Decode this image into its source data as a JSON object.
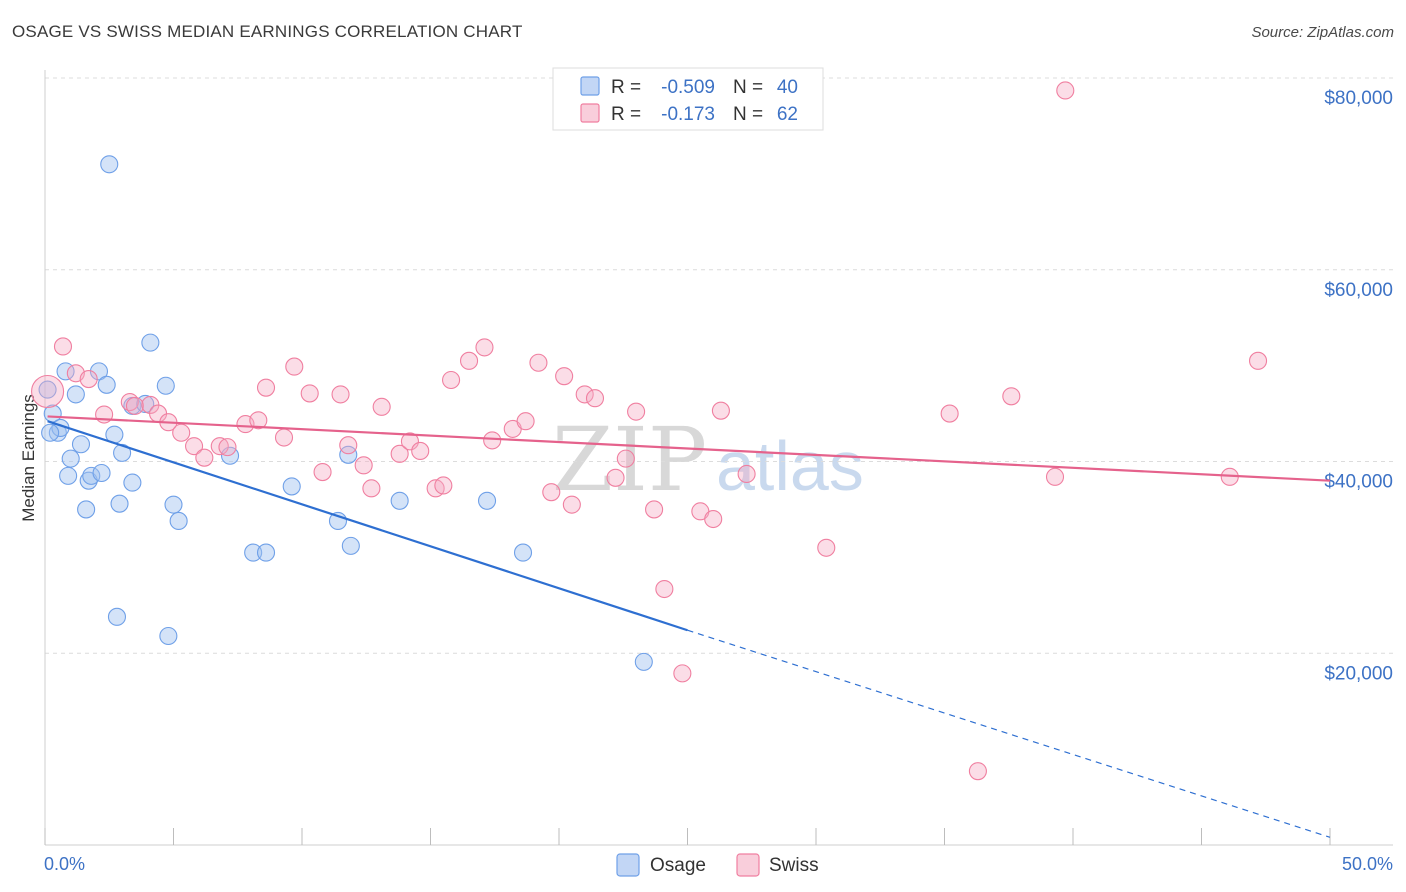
{
  "title": "OSAGE VS SWISS MEDIAN EARNINGS CORRELATION CHART",
  "source": "Source: ZipAtlas.com",
  "watermark": {
    "zip": "ZIP",
    "atlas": "atlas"
  },
  "legend": {
    "rows": [
      {
        "r_label": "R =",
        "r_value": "-0.509",
        "n_label": "N =",
        "n_value": "40",
        "color": "#6fa0e8"
      },
      {
        "r_label": "R =",
        "r_value": "-0.173",
        "n_label": "N =",
        "n_value": "62",
        "color": "#f07fa0"
      }
    ]
  },
  "bottom_legend": [
    "Osage",
    "Swiss"
  ],
  "chart_data": {
    "type": "scatter",
    "title": "OSAGE VS SWISS MEDIAN EARNINGS CORRELATION CHART",
    "xlabel": "",
    "ylabel": "Median Earnings",
    "xlim": [
      0,
      50
    ],
    "ylim": [
      0,
      80000
    ],
    "x_tick_labels": [
      "0.0%",
      "50.0%"
    ],
    "y_ticks": [
      20000,
      40000,
      60000,
      80000
    ],
    "y_tick_labels": [
      "$20,000",
      "$40,000",
      "$60,000",
      "$80,000"
    ],
    "grid": true,
    "legend_position": "top-center",
    "series": [
      {
        "name": "Osage",
        "color": "#6fa0e8",
        "trend": {
          "x0": 0.1,
          "y0": 44200,
          "x1": 25.0,
          "y1": 22400,
          "dash_to_x": 50.0,
          "dash_to_y": 800
        },
        "points": [
          [
            0.1,
            47500
          ],
          [
            0.3,
            45000
          ],
          [
            0.5,
            43000
          ],
          [
            0.6,
            43500
          ],
          [
            0.8,
            49400
          ],
          [
            0.9,
            38500
          ],
          [
            1.0,
            40300
          ],
          [
            1.2,
            47000
          ],
          [
            1.4,
            41800
          ],
          [
            1.6,
            35000
          ],
          [
            1.7,
            38000
          ],
          [
            1.8,
            38500
          ],
          [
            2.1,
            49400
          ],
          [
            2.2,
            38800
          ],
          [
            2.4,
            48000
          ],
          [
            2.5,
            71000
          ],
          [
            2.7,
            42800
          ],
          [
            2.8,
            23800
          ],
          [
            2.9,
            35600
          ],
          [
            3.0,
            40900
          ],
          [
            3.4,
            37800
          ],
          [
            3.4,
            45800
          ],
          [
            3.9,
            46000
          ],
          [
            4.1,
            52400
          ],
          [
            4.7,
            47900
          ],
          [
            4.8,
            21800
          ],
          [
            5.0,
            35500
          ],
          [
            5.2,
            33800
          ],
          [
            7.2,
            40600
          ],
          [
            8.1,
            30500
          ],
          [
            8.6,
            30500
          ],
          [
            9.6,
            37400
          ],
          [
            11.4,
            33800
          ],
          [
            11.8,
            40700
          ],
          [
            11.9,
            31200
          ],
          [
            13.8,
            35900
          ],
          [
            17.2,
            35900
          ],
          [
            18.6,
            30500
          ],
          [
            23.3,
            19100
          ],
          [
            0.2,
            43000
          ]
        ]
      },
      {
        "name": "Swiss",
        "color": "#f07fa0",
        "trend": {
          "x0": 0.1,
          "y0": 44700,
          "x1": 50.0,
          "y1": 38000
        },
        "points": [
          [
            0.1,
            47300
          ],
          [
            0.7,
            52000
          ],
          [
            1.2,
            49200
          ],
          [
            1.7,
            48600
          ],
          [
            2.3,
            44900
          ],
          [
            3.3,
            46200
          ],
          [
            3.5,
            45800
          ],
          [
            4.1,
            45900
          ],
          [
            4.4,
            45000
          ],
          [
            4.8,
            44100
          ],
          [
            5.3,
            43000
          ],
          [
            5.8,
            41600
          ],
          [
            6.2,
            40400
          ],
          [
            6.8,
            41600
          ],
          [
            7.1,
            41500
          ],
          [
            7.8,
            43900
          ],
          [
            8.3,
            44300
          ],
          [
            8.6,
            47700
          ],
          [
            9.3,
            42500
          ],
          [
            9.7,
            49900
          ],
          [
            10.3,
            47100
          ],
          [
            10.8,
            38900
          ],
          [
            11.5,
            47000
          ],
          [
            11.8,
            41700
          ],
          [
            12.4,
            39600
          ],
          [
            12.7,
            37200
          ],
          [
            13.1,
            45700
          ],
          [
            13.8,
            40800
          ],
          [
            14.2,
            42100
          ],
          [
            14.6,
            41100
          ],
          [
            15.2,
            37200
          ],
          [
            15.5,
            37500
          ],
          [
            15.8,
            48500
          ],
          [
            16.5,
            50500
          ],
          [
            17.1,
            51900
          ],
          [
            17.4,
            42200
          ],
          [
            18.2,
            43400
          ],
          [
            18.7,
            44200
          ],
          [
            19.2,
            50300
          ],
          [
            19.7,
            36800
          ],
          [
            20.2,
            48900
          ],
          [
            20.5,
            35500
          ],
          [
            21.0,
            47000
          ],
          [
            21.4,
            46600
          ],
          [
            22.2,
            38300
          ],
          [
            22.6,
            40300
          ],
          [
            23.0,
            45200
          ],
          [
            23.7,
            35000
          ],
          [
            24.1,
            26700
          ],
          [
            24.8,
            17900
          ],
          [
            25.5,
            34800
          ],
          [
            26.0,
            34000
          ],
          [
            26.3,
            45300
          ],
          [
            27.3,
            38700
          ],
          [
            30.4,
            31000
          ],
          [
            35.2,
            45000
          ],
          [
            36.3,
            7700
          ],
          [
            37.6,
            46800
          ],
          [
            39.3,
            38400
          ],
          [
            39.7,
            78700
          ],
          [
            46.1,
            38400
          ],
          [
            47.2,
            50500
          ]
        ]
      }
    ]
  }
}
